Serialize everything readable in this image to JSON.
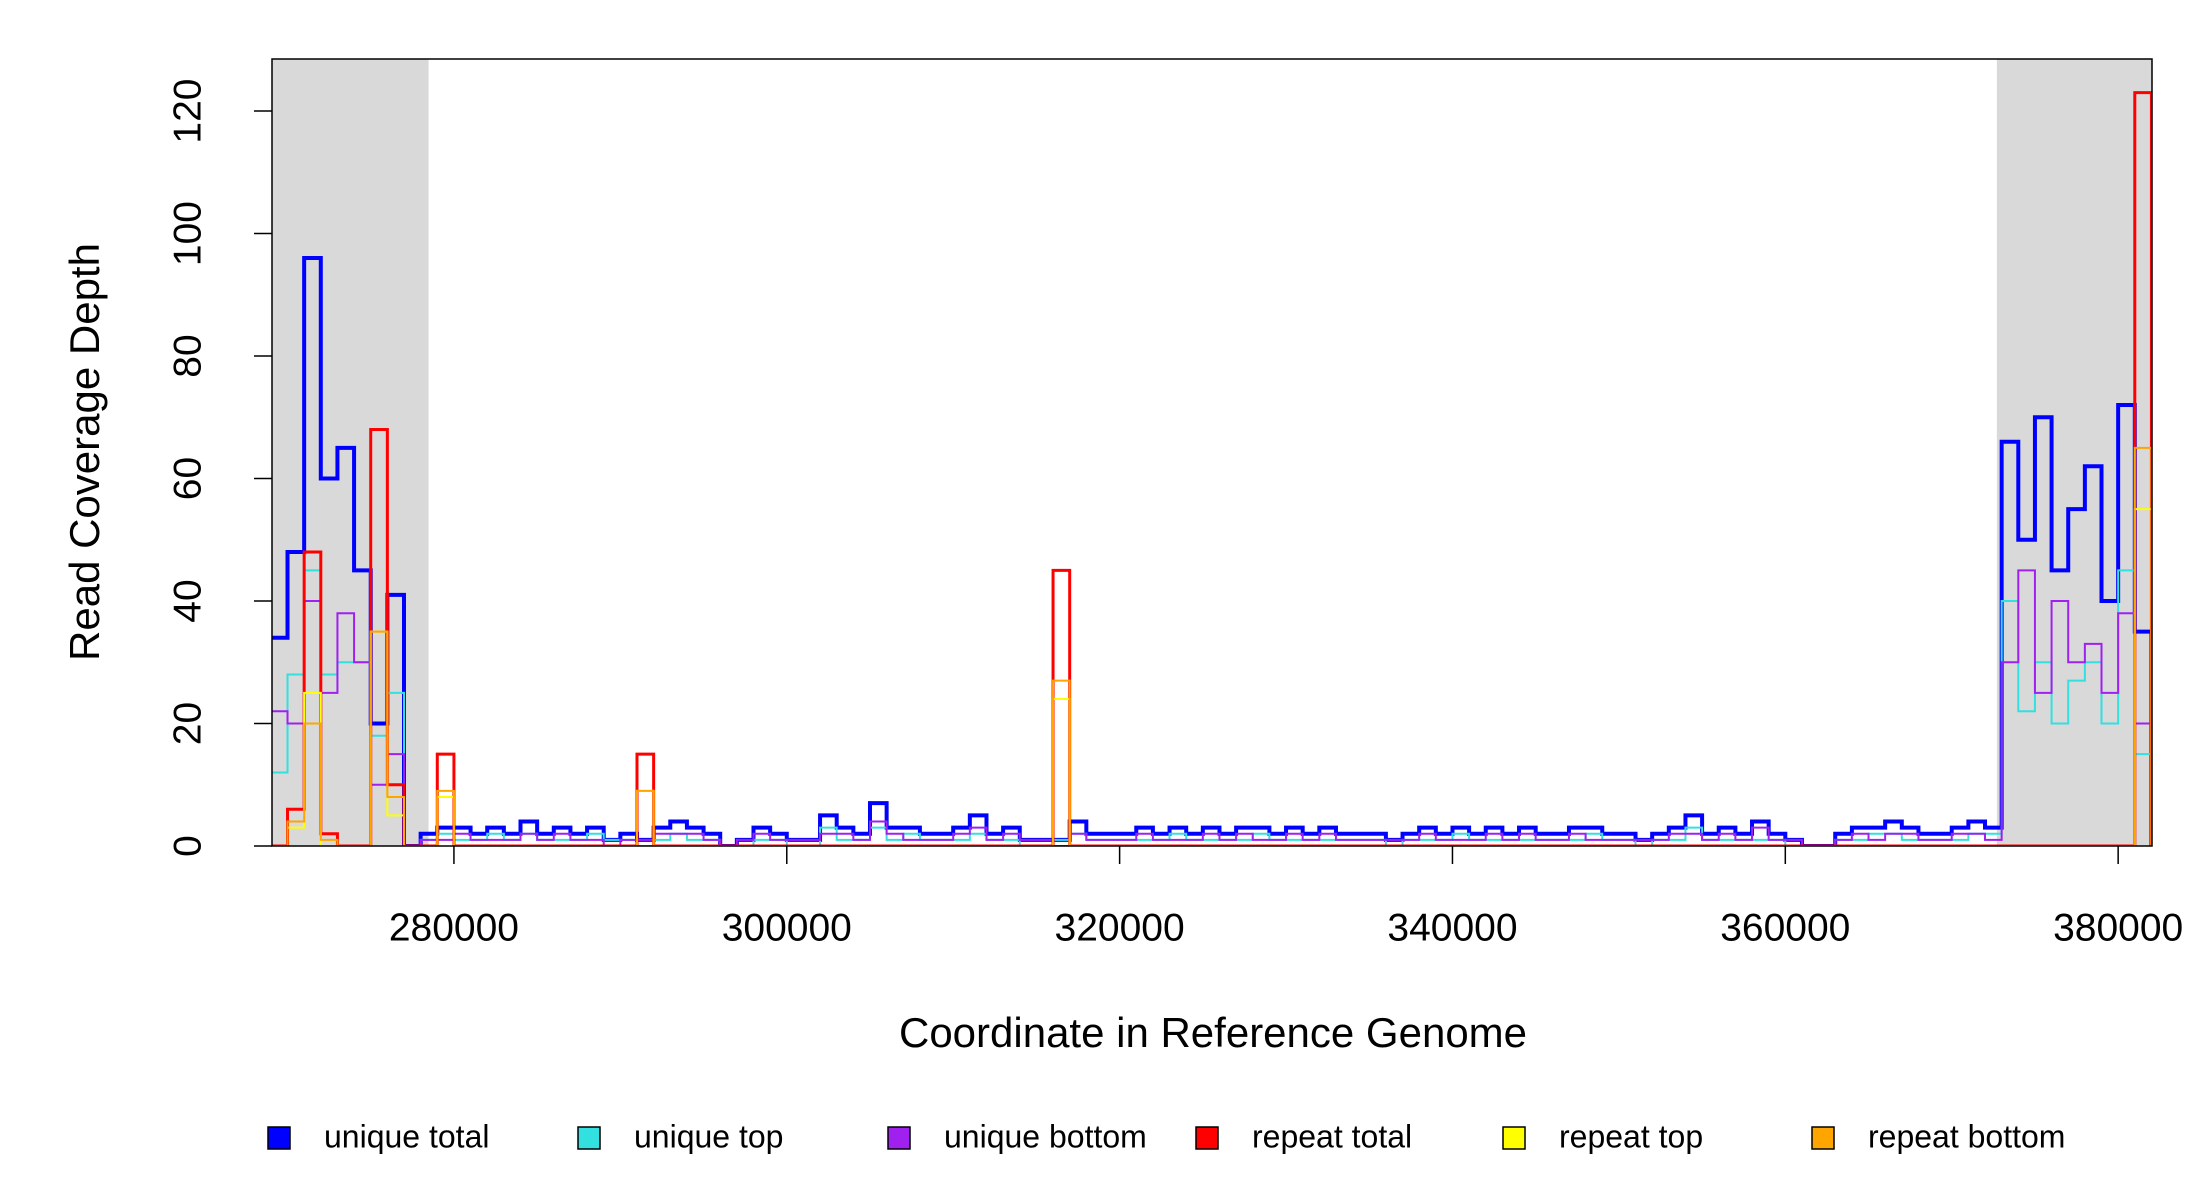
{
  "chart_data": {
    "type": "step",
    "xlabel": "Coordinate in Reference Genome",
    "ylabel": "Read Coverage Depth",
    "xlim": [
      269068,
      382034
    ],
    "ylim": [
      0,
      128.5
    ],
    "xticks": [
      280000,
      300000,
      320000,
      340000,
      360000,
      380000
    ],
    "yticks": [
      0,
      20,
      40,
      60,
      80,
      100,
      120
    ],
    "shaded_regions": [
      [
        269068,
        278475
      ],
      [
        372712,
        382034
      ]
    ],
    "shade_color": "#d9d9d9",
    "x": [
      269000,
      270000,
      271000,
      272000,
      273000,
      274000,
      275000,
      276000,
      277000,
      278000,
      279000,
      280000,
      281000,
      282000,
      283000,
      284000,
      285000,
      286000,
      287000,
      288000,
      289000,
      290000,
      291000,
      292000,
      293000,
      294000,
      295000,
      296000,
      297000,
      298000,
      299000,
      300000,
      301000,
      302000,
      303000,
      304000,
      305000,
      306000,
      307000,
      308000,
      309000,
      310000,
      311000,
      312000,
      313000,
      314000,
      315000,
      316000,
      317000,
      318000,
      319000,
      320000,
      321000,
      322000,
      323000,
      324000,
      325000,
      326000,
      327000,
      328000,
      329000,
      330000,
      331000,
      332000,
      333000,
      334000,
      335000,
      336000,
      337000,
      338000,
      339000,
      340000,
      341000,
      342000,
      343000,
      344000,
      345000,
      346000,
      347000,
      348000,
      349000,
      350000,
      351000,
      352000,
      353000,
      354000,
      355000,
      356000,
      357000,
      358000,
      359000,
      360000,
      361000,
      362000,
      363000,
      364000,
      365000,
      366000,
      367000,
      368000,
      369000,
      370000,
      371000,
      372000,
      373000,
      374000,
      375000,
      376000,
      377000,
      378000,
      379000,
      380000,
      381000,
      382000
    ],
    "series": [
      {
        "name": "unique total",
        "color": "#0000ff",
        "width": 4,
        "values": [
          34,
          48,
          96,
          60,
          65,
          45,
          20,
          41,
          0,
          2,
          3,
          3,
          2,
          3,
          2,
          4,
          2,
          3,
          2,
          3,
          1,
          2,
          1,
          3,
          4,
          3,
          2,
          0,
          1,
          3,
          2,
          1,
          1,
          5,
          3,
          2,
          7,
          3,
          3,
          2,
          2,
          3,
          5,
          2,
          3,
          1,
          1,
          1,
          4,
          2,
          2,
          2,
          3,
          2,
          3,
          2,
          3,
          2,
          3,
          3,
          2,
          3,
          2,
          3,
          2,
          2,
          2,
          1,
          2,
          3,
          2,
          3,
          2,
          3,
          2,
          3,
          2,
          2,
          3,
          3,
          2,
          2,
          1,
          2,
          3,
          5,
          2,
          3,
          2,
          4,
          2,
          1,
          0,
          0,
          2,
          3,
          3,
          4,
          3,
          2,
          2,
          3,
          4,
          3,
          66,
          50,
          70,
          45,
          55,
          62,
          40,
          72,
          35,
          0
        ]
      },
      {
        "name": "unique top",
        "color": "#33e0e0",
        "width": 2,
        "values": [
          12,
          28,
          45,
          28,
          30,
          30,
          18,
          25,
          0,
          1,
          2,
          1,
          1,
          2,
          1,
          2,
          1,
          1,
          1,
          2,
          1,
          1,
          0,
          1,
          2,
          1,
          1,
          0,
          0,
          1,
          1,
          0,
          0,
          3,
          1,
          1,
          3,
          1,
          2,
          1,
          1,
          1,
          2,
          1,
          1,
          0,
          0,
          1,
          2,
          1,
          1,
          1,
          1,
          1,
          2,
          1,
          1,
          1,
          1,
          2,
          1,
          1,
          1,
          1,
          1,
          1,
          1,
          0,
          1,
          1,
          1,
          2,
          1,
          1,
          1,
          1,
          1,
          1,
          1,
          2,
          1,
          1,
          0,
          1,
          1,
          3,
          1,
          1,
          1,
          1,
          1,
          0,
          0,
          0,
          1,
          1,
          2,
          2,
          1,
          1,
          1,
          1,
          2,
          2,
          40,
          22,
          30,
          20,
          27,
          30,
          20,
          45,
          15,
          0
        ]
      },
      {
        "name": "unique bottom",
        "color": "#a020f0",
        "width": 2,
        "values": [
          22,
          20,
          40,
          25,
          38,
          30,
          10,
          15,
          0,
          1,
          1,
          2,
          1,
          1,
          1,
          2,
          1,
          2,
          1,
          1,
          0,
          1,
          1,
          2,
          2,
          2,
          1,
          0,
          1,
          2,
          1,
          1,
          1,
          2,
          2,
          1,
          4,
          2,
          1,
          1,
          1,
          2,
          3,
          1,
          2,
          1,
          1,
          0,
          2,
          1,
          1,
          1,
          2,
          1,
          1,
          1,
          2,
          1,
          2,
          1,
          1,
          2,
          1,
          2,
          1,
          1,
          1,
          1,
          1,
          2,
          1,
          1,
          1,
          2,
          1,
          2,
          1,
          1,
          2,
          1,
          1,
          1,
          1,
          1,
          2,
          2,
          1,
          2,
          1,
          3,
          1,
          1,
          0,
          0,
          1,
          2,
          1,
          2,
          2,
          1,
          1,
          2,
          2,
          1,
          30,
          45,
          25,
          40,
          30,
          33,
          25,
          38,
          20,
          0
        ]
      },
      {
        "name": "repeat total",
        "color": "#ff0000",
        "width": 3,
        "values": [
          0,
          6,
          48,
          2,
          0,
          0,
          68,
          10,
          0,
          0,
          15,
          0,
          0,
          0,
          0,
          0,
          0,
          0,
          0,
          0,
          0,
          0,
          15,
          0,
          0,
          0,
          0,
          0,
          0,
          0,
          0,
          0,
          0,
          0,
          0,
          0,
          0,
          0,
          0,
          0,
          0,
          0,
          0,
          0,
          0,
          0,
          0,
          45,
          0,
          0,
          0,
          0,
          0,
          0,
          0,
          0,
          0,
          0,
          0,
          0,
          0,
          0,
          0,
          0,
          0,
          0,
          0,
          0,
          0,
          0,
          0,
          0,
          0,
          0,
          0,
          0,
          0,
          0,
          0,
          0,
          0,
          0,
          0,
          0,
          0,
          0,
          0,
          0,
          0,
          0,
          0,
          0,
          0,
          0,
          0,
          0,
          0,
          0,
          0,
          0,
          0,
          0,
          0,
          0,
          0,
          0,
          0,
          0,
          0,
          0,
          0,
          0,
          123,
          0
        ]
      },
      {
        "name": "repeat top",
        "color": "#ffff00",
        "width": 2,
        "values": [
          0,
          3,
          25,
          0,
          0,
          0,
          35,
          5,
          0,
          0,
          8,
          0,
          0,
          0,
          0,
          0,
          0,
          0,
          0,
          0,
          0,
          0,
          9,
          0,
          0,
          0,
          0,
          0,
          0,
          0,
          0,
          0,
          0,
          0,
          0,
          0,
          0,
          0,
          0,
          0,
          0,
          0,
          0,
          0,
          0,
          0,
          0,
          24,
          0,
          0,
          0,
          0,
          0,
          0,
          0,
          0,
          0,
          0,
          0,
          0,
          0,
          0,
          0,
          0,
          0,
          0,
          0,
          0,
          0,
          0,
          0,
          0,
          0,
          0,
          0,
          0,
          0,
          0,
          0,
          0,
          0,
          0,
          0,
          0,
          0,
          0,
          0,
          0,
          0,
          0,
          0,
          0,
          0,
          0,
          0,
          0,
          0,
          0,
          0,
          0,
          0,
          0,
          0,
          0,
          0,
          0,
          0,
          0,
          0,
          0,
          0,
          0,
          55,
          0
        ]
      },
      {
        "name": "repeat bottom",
        "color": "#ffa500",
        "width": 2,
        "values": [
          0,
          4,
          20,
          1,
          0,
          0,
          35,
          8,
          0,
          0,
          9,
          0,
          0,
          0,
          0,
          0,
          0,
          0,
          0,
          0,
          0,
          0,
          9,
          0,
          0,
          0,
          0,
          0,
          0,
          0,
          0,
          0,
          0,
          0,
          0,
          0,
          0,
          0,
          0,
          0,
          0,
          0,
          0,
          0,
          0,
          0,
          0,
          27,
          0,
          0,
          0,
          0,
          0,
          0,
          0,
          0,
          0,
          0,
          0,
          0,
          0,
          0,
          0,
          0,
          0,
          0,
          0,
          0,
          0,
          0,
          0,
          0,
          0,
          0,
          0,
          0,
          0,
          0,
          0,
          0,
          0,
          0,
          0,
          0,
          0,
          0,
          0,
          0,
          0,
          0,
          0,
          0,
          0,
          0,
          0,
          0,
          0,
          0,
          0,
          0,
          0,
          0,
          0,
          0,
          0,
          0,
          0,
          0,
          0,
          0,
          0,
          0,
          65,
          0
        ]
      }
    ]
  }
}
